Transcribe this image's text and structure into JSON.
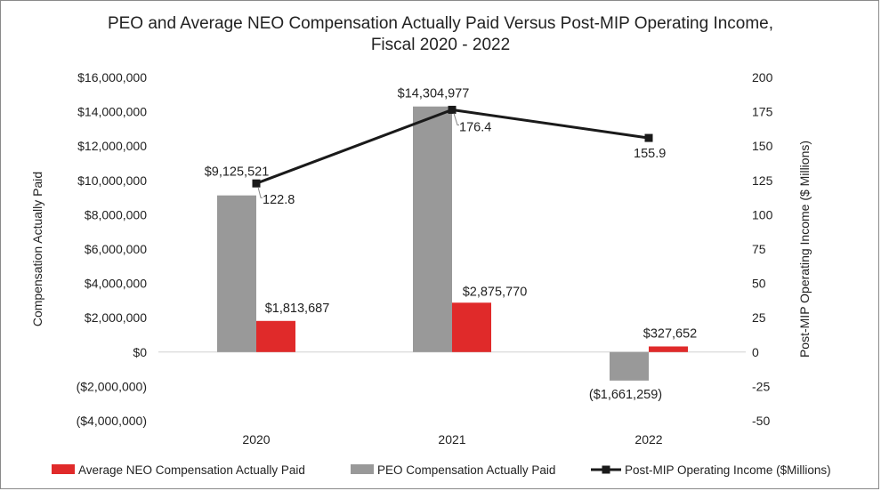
{
  "chart_data": {
    "type": "bar+line",
    "title_lines": [
      "PEO and Average NEO Compensation Actually Paid Versus Post-MIP Operating Income,",
      "Fiscal 2020 - 2022"
    ],
    "categories": [
      "2020",
      "2021",
      "2022"
    ],
    "y_left": {
      "label": "Compensation Actually Paid",
      "range": [
        -4000000,
        16000000
      ],
      "ticks": [
        16000000,
        14000000,
        12000000,
        10000000,
        8000000,
        6000000,
        4000000,
        2000000,
        0,
        -2000000,
        -4000000
      ],
      "tick_labels": [
        "$16,000,000",
        "$14,000,000",
        "$12,000,000",
        "$10,000,000",
        "$8,000,000",
        "$6,000,000",
        "$4,000,000",
        "$2,000,000",
        "$0",
        "($2,000,000)",
        "($4,000,000)"
      ]
    },
    "y_right": {
      "label": "Post-MIP Operating Income ($ Millions)",
      "range": [
        -50,
        200
      ],
      "ticks": [
        200,
        175,
        150,
        125,
        100,
        75,
        50,
        25,
        0,
        -25,
        -50
      ],
      "tick_labels": [
        "200",
        "175",
        "150",
        "125",
        "100",
        "75",
        "50",
        "25",
        "0",
        "-25",
        "-50"
      ]
    },
    "series": [
      {
        "name": "PEO Compensation Actually Paid",
        "kind": "bar",
        "axis": "left",
        "color": "#999999",
        "values": [
          9125521,
          14304977,
          -1661259
        ],
        "labels": [
          "$9,125,521",
          "$14,304,977",
          "($1,661,259)"
        ]
      },
      {
        "name": "Average NEO Compensation Actually Paid",
        "kind": "bar",
        "axis": "left",
        "color": "#e02a2a",
        "values": [
          1813687,
          2875770,
          327652
        ],
        "labels": [
          "$1,813,687",
          "$2,875,770",
          "$327,652"
        ]
      },
      {
        "name": "Post-MIP Operating Income ($Millions)",
        "kind": "line",
        "axis": "right",
        "color": "#1a1a1a",
        "values": [
          122.8,
          176.4,
          155.9
        ],
        "labels": [
          "122.8",
          "176.4",
          "155.9"
        ]
      }
    ],
    "legend": {
      "position": "bottom",
      "order": [
        1,
        0,
        2
      ],
      "labels": [
        "Average NEO Compensation Actually Paid",
        "PEO Compensation Actually Paid",
        "Post-MIP Operating Income ($Millions)"
      ]
    },
    "grid": false
  }
}
